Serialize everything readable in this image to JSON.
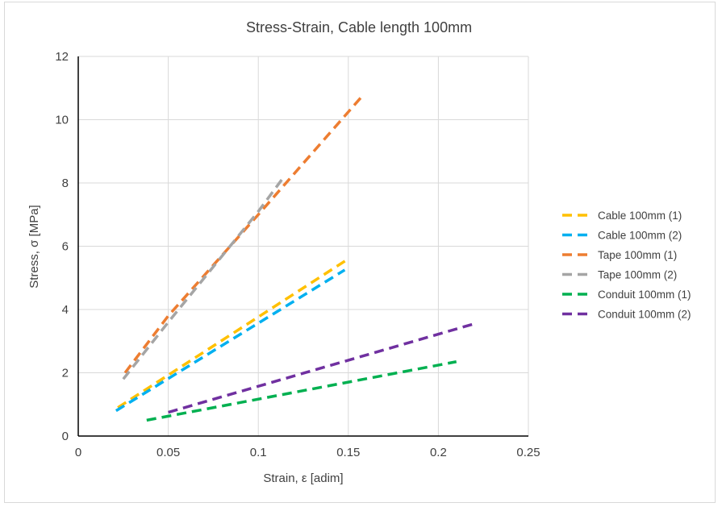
{
  "chart_data": {
    "type": "line",
    "title": "Stress-Strain, Cable length 100mm",
    "xlabel": "Strain, ε [adim]",
    "ylabel": "Stress, σ [MPa]",
    "xlim": [
      0,
      0.25
    ],
    "ylim": [
      0,
      12
    ],
    "xticks": [
      "0",
      "0.05",
      "0.1",
      "0.15",
      "0.2",
      "0.25"
    ],
    "yticks": [
      "0",
      "2",
      "4",
      "6",
      "8",
      "10",
      "12"
    ],
    "grid": true,
    "legend": "right",
    "series": [
      {
        "name": "Cable 100mm (1)",
        "color": "#FFC000",
        "x": [
          0.022,
          0.15
        ],
        "y": [
          0.9,
          5.6
        ]
      },
      {
        "name": "Cable 100mm (2)",
        "color": "#00B0F0",
        "x": [
          0.021,
          0.148
        ],
        "y": [
          0.8,
          5.25
        ]
      },
      {
        "name": "Tape 100mm (1)",
        "color": "#ED7D31",
        "x": [
          0.026,
          0.05,
          0.1,
          0.157
        ],
        "y": [
          2.0,
          3.8,
          7.0,
          10.7
        ]
      },
      {
        "name": "Tape 100mm (2)",
        "color": "#A5A5A5",
        "x": [
          0.025,
          0.05,
          0.1,
          0.113
        ],
        "y": [
          1.8,
          3.6,
          7.1,
          8.1
        ]
      },
      {
        "name": "Conduit 100mm (1)",
        "color": "#00B050",
        "x": [
          0.038,
          0.21
        ],
        "y": [
          0.5,
          2.35
        ]
      },
      {
        "name": "Conduit 100mm (2)",
        "color": "#7030A0",
        "x": [
          0.05,
          0.22
        ],
        "y": [
          0.75,
          3.55
        ]
      }
    ]
  }
}
